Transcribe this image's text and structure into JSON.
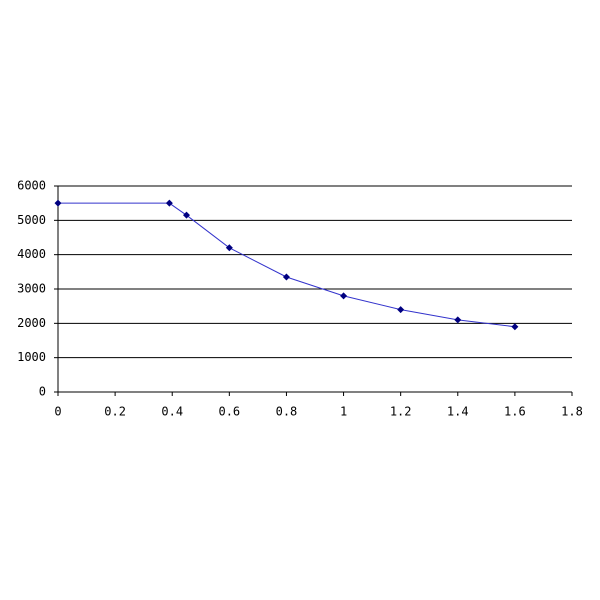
{
  "chart_data": {
    "type": "line",
    "x": [
      0,
      0.39,
      0.45,
      0.6,
      0.8,
      1.0,
      1.2,
      1.4,
      1.6
    ],
    "series": [
      {
        "color": "#3333cc",
        "marker_color": "#000080",
        "values": [
          5500,
          5500,
          5150,
          4200,
          3350,
          2800,
          2400,
          2100,
          1900
        ]
      }
    ],
    "xlim": [
      0,
      1.8
    ],
    "xticks": [
      0,
      0.2,
      0.4,
      0.6,
      0.8,
      1,
      1.2,
      1.4,
      1.6,
      1.8
    ],
    "ylim": [
      0,
      6000
    ],
    "yticks": [
      0,
      1000,
      2000,
      3000,
      4000,
      5000,
      6000
    ],
    "grid": true
  }
}
